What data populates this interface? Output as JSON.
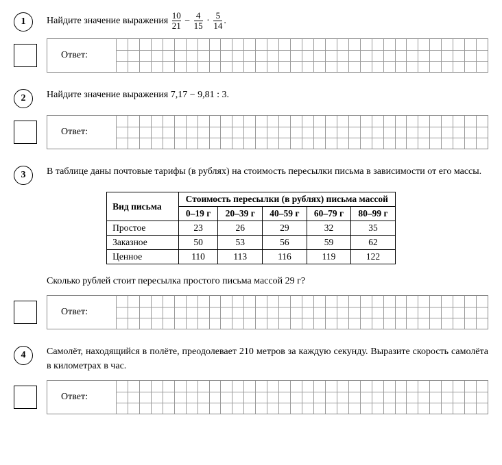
{
  "questions": [
    {
      "num": "1",
      "text_before": "Найдите значение выражения ",
      "expr": {
        "f1": {
          "n": "10",
          "d": "21"
        },
        "op1": "−",
        "f2": {
          "n": "4",
          "d": "15"
        },
        "op2": "·",
        "f3": {
          "n": "5",
          "d": "14"
        }
      },
      "text_after": ".",
      "answer_label": "Ответ:"
    },
    {
      "num": "2",
      "text": "Найдите значение выражения  7,17 − 9,81 : 3.",
      "answer_label": "Ответ:"
    },
    {
      "num": "3",
      "text": "В таблице даны почтовые тарифы (в рублях) на стоимость пересылки письма в зависимости от его массы.",
      "table": {
        "corner": "Вид письма",
        "spanning_header": "Стоимость пересылки (в рублях) письма массой",
        "cols": [
          "0–19 г",
          "20–39 г",
          "40–59 г",
          "60–79 г",
          "80–99 г"
        ],
        "rows": [
          {
            "name": "Простое",
            "vals": [
              "23",
              "26",
              "29",
              "32",
              "35"
            ]
          },
          {
            "name": "Заказное",
            "vals": [
              "50",
              "53",
              "56",
              "59",
              "62"
            ]
          },
          {
            "name": "Ценное",
            "vals": [
              "110",
              "113",
              "116",
              "119",
              "122"
            ]
          }
        ]
      },
      "text2": "Сколько рублей стоит пересылка простого письма массой 29 г?",
      "answer_label": "Ответ:"
    },
    {
      "num": "4",
      "text": "Самолёт, находящийся в полёте, преодолевает 210 метров за каждую секунду. Выразите скорость самолёта в километрах в час.",
      "answer_label": "Ответ:"
    }
  ],
  "layout": {
    "grid_rows": 3,
    "grid_cols": 32
  }
}
